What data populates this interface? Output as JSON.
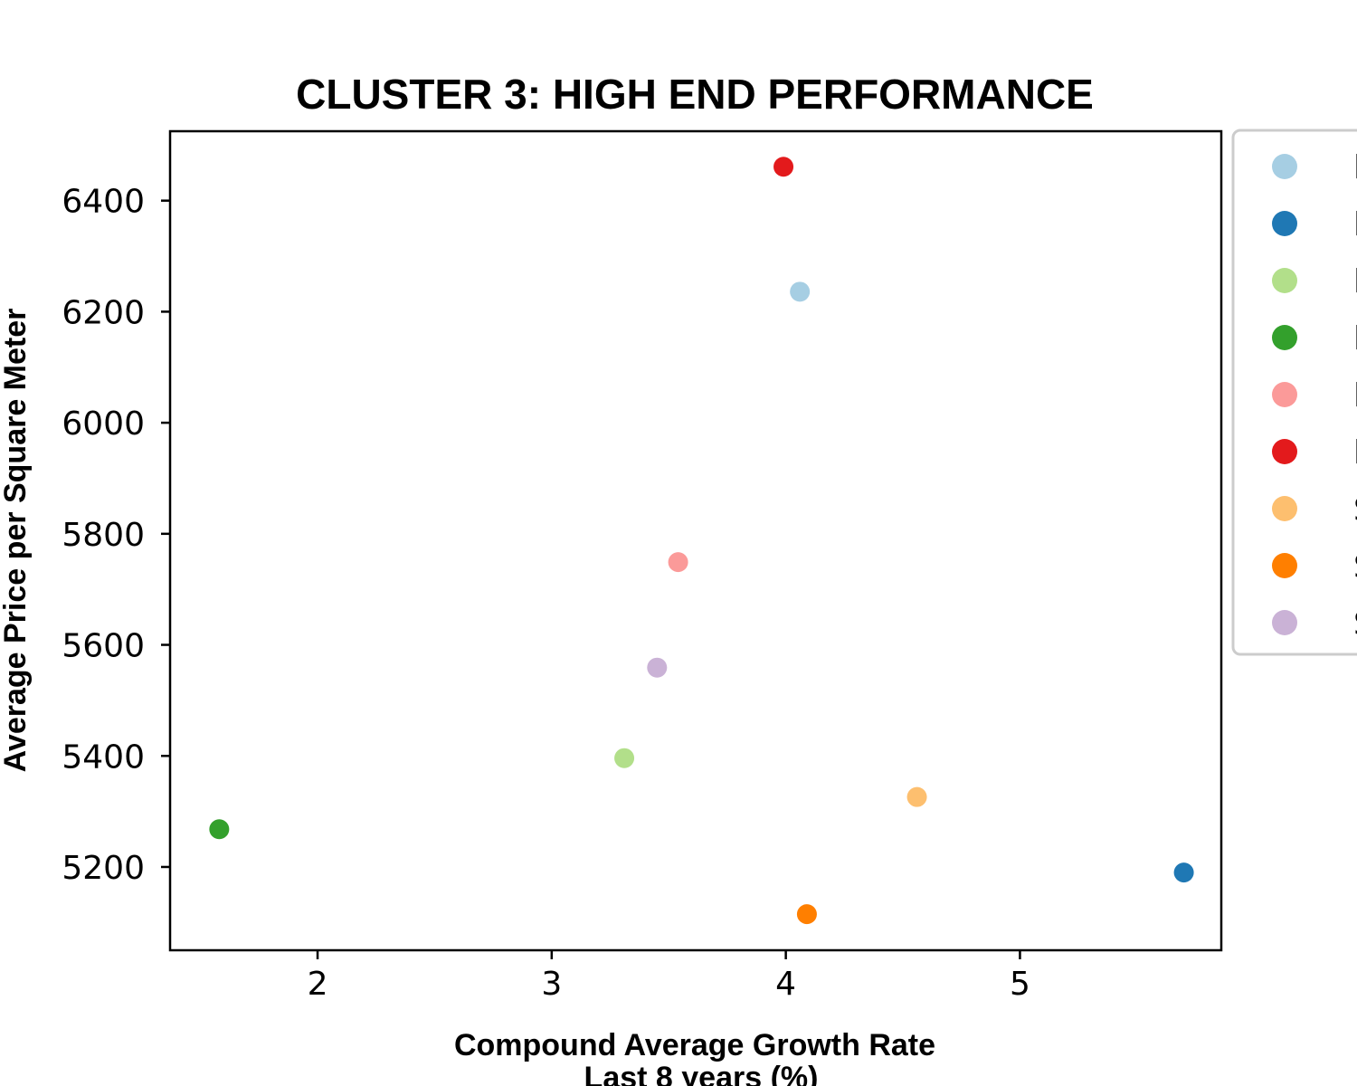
{
  "chart_data": {
    "type": "scatter",
    "title": "CLUSTER 3: HIGH END PERFORMANCE",
    "xlabel_lines": [
      "Compound Average Growth Rate",
      "Last 8 years (%)"
    ],
    "ylabel": "Average Price per Square Meter",
    "xlim": [
      1.37,
      5.86
    ],
    "ylim": [
      5050,
      6525
    ],
    "xticks": [
      2,
      3,
      4,
      5
    ],
    "yticks": [
      5200,
      5400,
      5600,
      5800,
      6000,
      6200,
      6400
    ],
    "grid": false,
    "legend_position": "outside-right",
    "series": [
      {
        "label": "l",
        "color": "#a6cee3",
        "x": 4.06,
        "y": 6236
      },
      {
        "label": "l",
        "color": "#1f78b4",
        "x": 5.7,
        "y": 5190
      },
      {
        "label": "l",
        "color": "#b2df8a",
        "x": 3.31,
        "y": 5396
      },
      {
        "label": "l",
        "color": "#33a02c",
        "x": 1.58,
        "y": 5268
      },
      {
        "label": "l",
        "color": "#fb9a99",
        "x": 3.54,
        "y": 5749
      },
      {
        "label": "l",
        "color": "#e31a1c",
        "x": 3.99,
        "y": 6461
      },
      {
        "label": "S",
        "color": "#fdbf6f",
        "x": 4.56,
        "y": 5326
      },
      {
        "label": "S",
        "color": "#ff7f00",
        "x": 4.09,
        "y": 5115
      },
      {
        "label": "S",
        "color": "#cab2d6",
        "x": 3.45,
        "y": 5559
      }
    ]
  }
}
